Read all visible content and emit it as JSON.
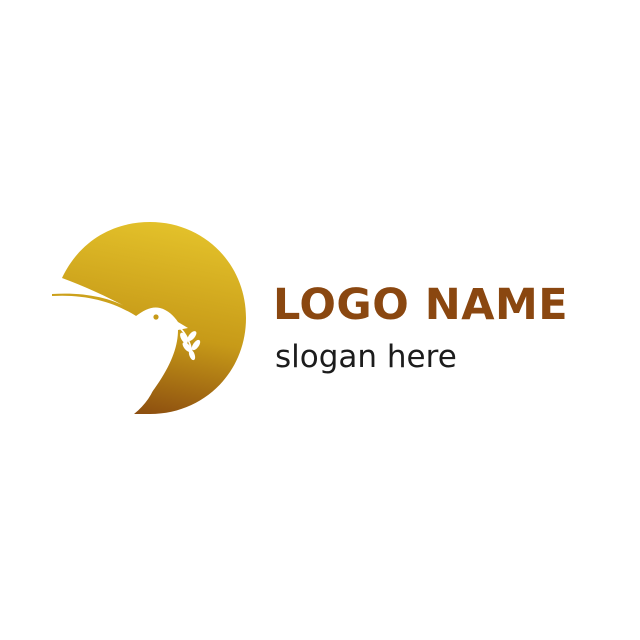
{
  "logo": {
    "brand_name": "LOGO NAME",
    "slogan": "slogan here",
    "icon": "dove-with-olive-branch-icon",
    "colors": {
      "gold_light": "#e3c12a",
      "gold_mid": "#c79a18",
      "brown_dark": "#8a4b0f",
      "brand_text": "#8a4710",
      "slogan_text": "#1c1c1c",
      "background": "#ffffff"
    }
  }
}
